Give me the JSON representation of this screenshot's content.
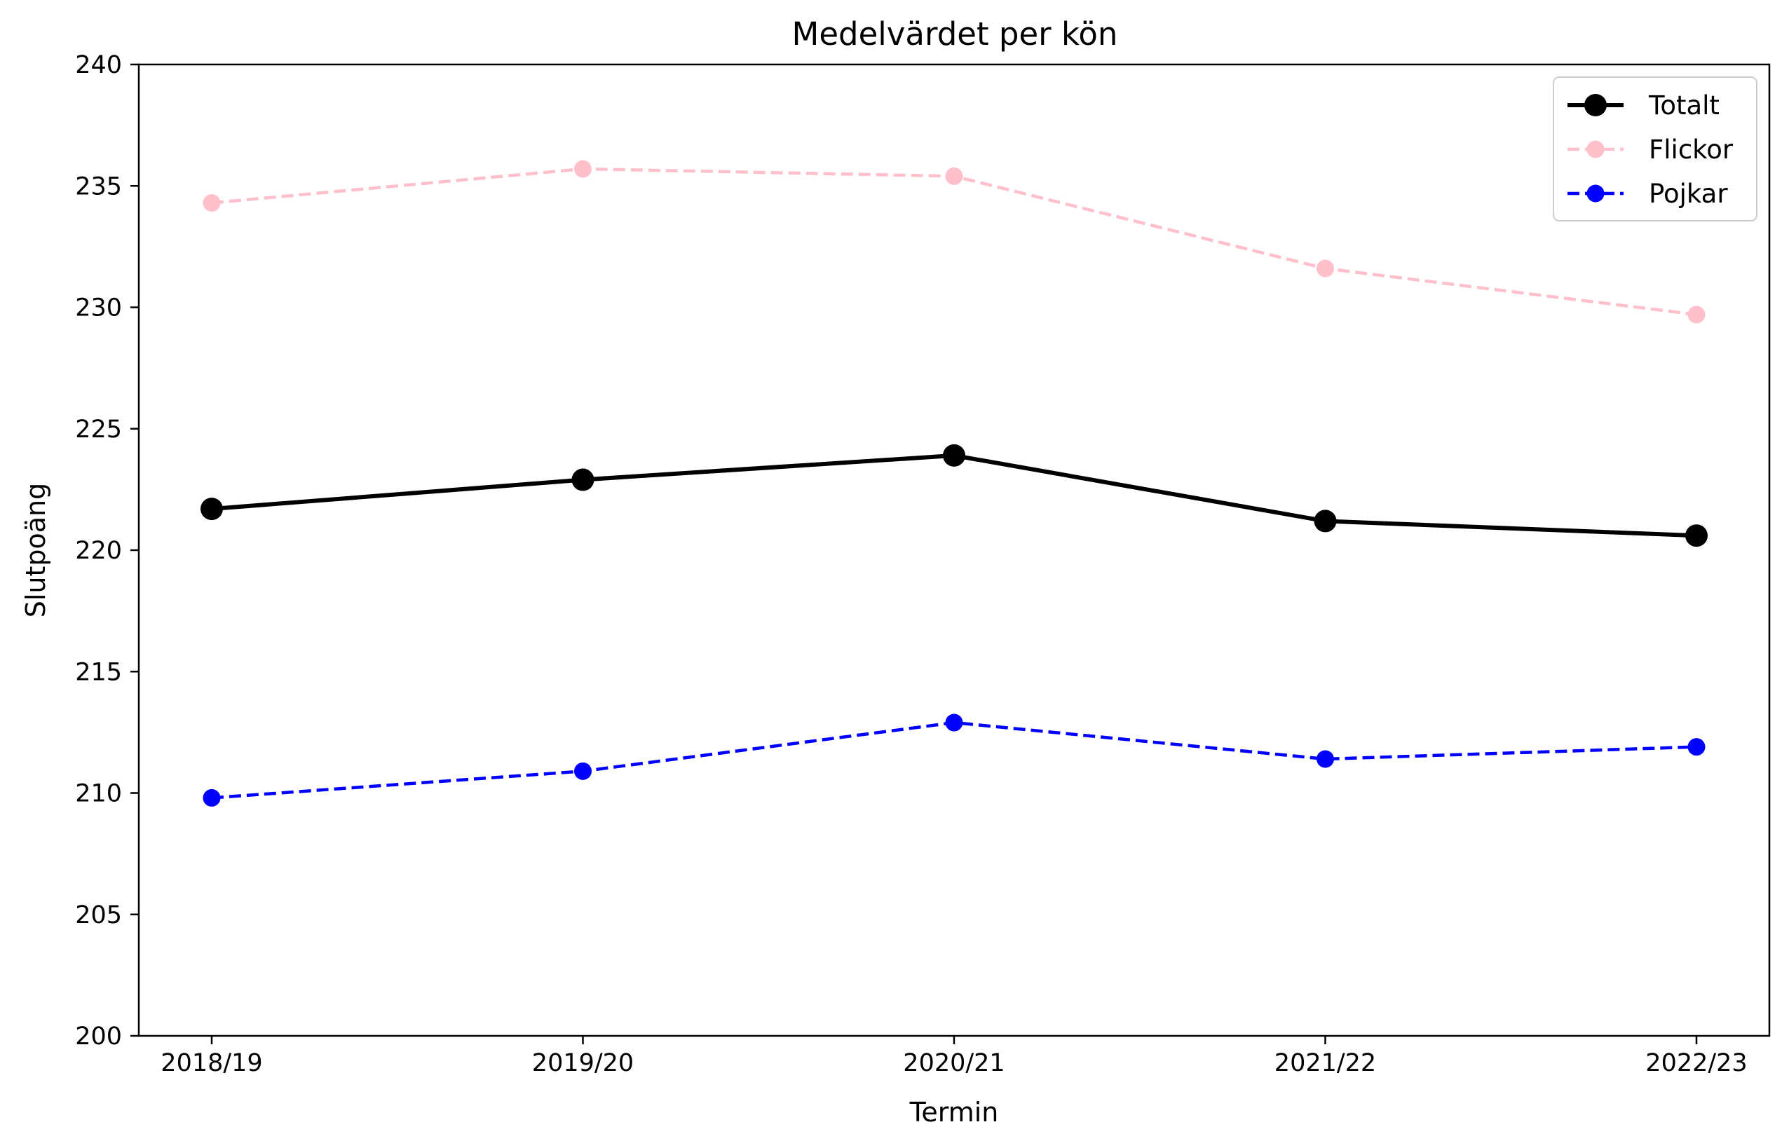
{
  "chart_data": {
    "type": "line",
    "title": "Medelvärdet per kön",
    "xlabel": "Termin",
    "ylabel": "Slutpoäng",
    "categories": [
      "2018/19",
      "2019/20",
      "2020/21",
      "2021/22",
      "2022/23"
    ],
    "ylim": [
      200,
      240
    ],
    "yticks": [
      "200",
      "205",
      "210",
      "215",
      "220",
      "225",
      "230",
      "235",
      "240"
    ],
    "grid": false,
    "legend_position": "top-right",
    "series": [
      {
        "name": "Totalt",
        "values": [
          221.7,
          222.9,
          223.9,
          221.2,
          220.6
        ],
        "color": "#000000",
        "style": "solid",
        "marker": "large"
      },
      {
        "name": "Flickor",
        "values": [
          234.3,
          235.7,
          235.4,
          231.6,
          229.7
        ],
        "color": "#ffc0cb",
        "style": "dashed",
        "marker": "small"
      },
      {
        "name": "Pojkar",
        "values": [
          209.8,
          210.9,
          212.9,
          211.4,
          211.9
        ],
        "color": "#0000ff",
        "style": "dashed",
        "marker": "small"
      }
    ]
  }
}
